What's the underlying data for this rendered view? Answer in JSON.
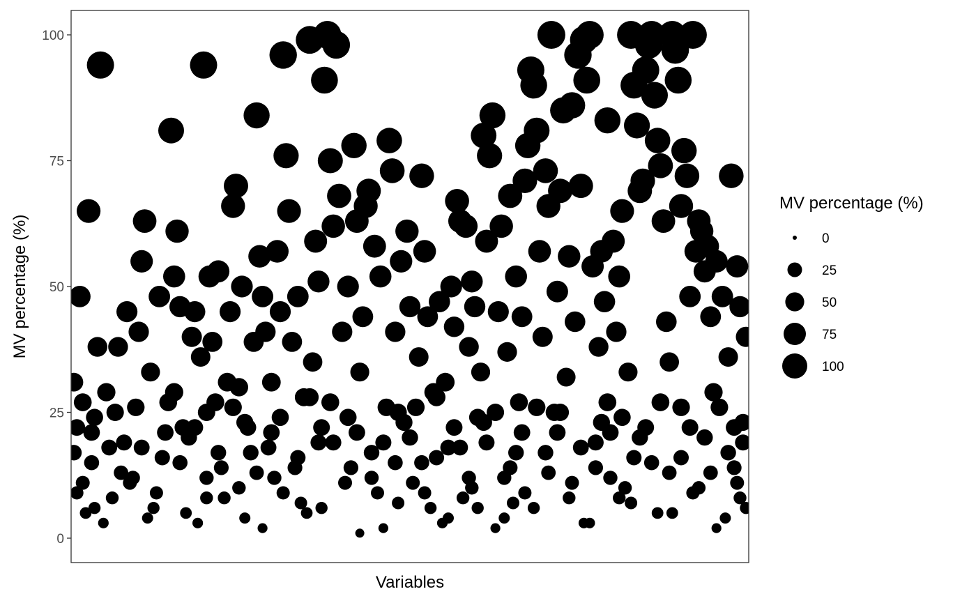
{
  "chart_data": {
    "type": "scatter",
    "xlabel": "Variables",
    "ylabel": "MV percentage (%)",
    "ylim": [
      0,
      100
    ],
    "yticks": [
      "0",
      "25",
      "50",
      "75",
      "100"
    ],
    "x_ticks_shown": false,
    "grid": false,
    "point_color": "#000000",
    "size_mapped_to": "y",
    "legend": {
      "title": "MV percentage (%)",
      "position": "right",
      "entries": [
        "0",
        "25",
        "50",
        "75",
        "100"
      ],
      "entry_values": [
        0,
        25,
        50,
        75,
        100
      ]
    },
    "series": [
      {
        "points": [
          [
            2,
            31
          ],
          [
            3,
            22
          ],
          [
            4,
            48
          ],
          [
            5,
            11
          ],
          [
            6,
            5
          ],
          [
            7,
            65
          ],
          [
            8,
            15
          ],
          [
            9,
            24
          ],
          [
            10,
            38
          ],
          [
            11,
            94
          ],
          [
            13,
            29
          ],
          [
            15,
            8
          ],
          [
            17,
            38
          ],
          [
            19,
            19
          ],
          [
            20,
            45
          ],
          [
            22,
            12
          ],
          [
            24,
            41
          ],
          [
            25,
            55
          ],
          [
            26,
            63
          ],
          [
            28,
            33
          ],
          [
            30,
            9
          ],
          [
            31,
            48
          ],
          [
            33,
            21
          ],
          [
            35,
            81
          ],
          [
            36,
            52
          ],
          [
            37,
            61
          ],
          [
            38,
            46
          ],
          [
            39,
            22
          ],
          [
            40,
            5
          ],
          [
            42,
            40
          ],
          [
            43,
            45
          ],
          [
            45,
            36
          ],
          [
            46,
            94
          ],
          [
            47,
            12
          ],
          [
            48,
            52
          ],
          [
            49,
            39
          ],
          [
            50,
            27
          ],
          [
            51,
            53
          ],
          [
            53,
            8
          ],
          [
            55,
            45
          ],
          [
            56,
            66
          ],
          [
            57,
            70
          ],
          [
            58,
            30
          ],
          [
            59,
            50
          ],
          [
            60,
            23
          ],
          [
            62,
            17
          ],
          [
            63,
            39
          ],
          [
            64,
            84
          ],
          [
            65,
            56
          ],
          [
            66,
            48
          ],
          [
            67,
            41
          ],
          [
            69,
            31
          ],
          [
            70,
            12
          ],
          [
            71,
            57
          ],
          [
            72,
            45
          ],
          [
            73,
            96
          ],
          [
            74,
            76
          ],
          [
            75,
            65
          ],
          [
            76,
            39
          ],
          [
            78,
            48
          ],
          [
            79,
            7
          ],
          [
            80,
            28
          ],
          [
            82,
            99
          ],
          [
            83,
            35
          ],
          [
            84,
            59
          ],
          [
            85,
            51
          ],
          [
            86,
            22
          ],
          [
            87,
            91
          ],
          [
            88,
            100
          ],
          [
            89,
            75
          ],
          [
            90,
            62
          ],
          [
            91,
            98
          ],
          [
            92,
            68
          ],
          [
            93,
            41
          ],
          [
            95,
            50
          ],
          [
            96,
            14
          ],
          [
            97,
            78
          ],
          [
            98,
            63
          ],
          [
            99,
            33
          ],
          [
            100,
            44
          ],
          [
            101,
            66
          ],
          [
            102,
            69
          ],
          [
            104,
            58
          ],
          [
            105,
            9
          ],
          [
            106,
            52
          ],
          [
            107,
            19
          ],
          [
            109,
            79
          ],
          [
            110,
            73
          ],
          [
            111,
            41
          ],
          [
            112,
            25
          ],
          [
            113,
            55
          ],
          [
            115,
            61
          ],
          [
            116,
            46
          ],
          [
            117,
            11
          ],
          [
            119,
            36
          ],
          [
            120,
            72
          ],
          [
            121,
            57
          ],
          [
            122,
            44
          ],
          [
            123,
            6
          ],
          [
            124,
            29
          ],
          [
            126,
            47
          ],
          [
            128,
            31
          ],
          [
            129,
            18
          ],
          [
            130,
            50
          ],
          [
            131,
            42
          ],
          [
            132,
            67
          ],
          [
            133,
            63
          ],
          [
            134,
            8
          ],
          [
            135,
            62
          ],
          [
            136,
            38
          ],
          [
            137,
            51
          ],
          [
            138,
            46
          ],
          [
            139,
            24
          ],
          [
            140,
            33
          ],
          [
            141,
            80
          ],
          [
            142,
            59
          ],
          [
            143,
            76
          ],
          [
            144,
            84
          ],
          [
            146,
            45
          ],
          [
            147,
            62
          ],
          [
            148,
            12
          ],
          [
            149,
            37
          ],
          [
            150,
            68
          ],
          [
            151,
            7
          ],
          [
            152,
            52
          ],
          [
            153,
            27
          ],
          [
            154,
            44
          ],
          [
            155,
            71
          ],
          [
            156,
            78
          ],
          [
            157,
            93
          ],
          [
            158,
            90
          ],
          [
            159,
            81
          ],
          [
            160,
            57
          ],
          [
            161,
            40
          ],
          [
            162,
            73
          ],
          [
            163,
            66
          ],
          [
            164,
            100
          ],
          [
            165,
            25
          ],
          [
            166,
            49
          ],
          [
            167,
            69
          ],
          [
            168,
            85
          ],
          [
            169,
            32
          ],
          [
            170,
            56
          ],
          [
            171,
            86
          ],
          [
            172,
            43
          ],
          [
            173,
            96
          ],
          [
            174,
            70
          ],
          [
            175,
            99
          ],
          [
            176,
            91
          ],
          [
            177,
            100
          ],
          [
            178,
            54
          ],
          [
            179,
            14
          ],
          [
            180,
            38
          ],
          [
            181,
            57
          ],
          [
            182,
            47
          ],
          [
            183,
            83
          ],
          [
            184,
            21
          ],
          [
            185,
            59
          ],
          [
            186,
            41
          ],
          [
            187,
            52
          ],
          [
            188,
            65
          ],
          [
            189,
            10
          ],
          [
            190,
            33
          ],
          [
            191,
            100
          ],
          [
            192,
            90
          ],
          [
            193,
            82
          ],
          [
            194,
            69
          ],
          [
            195,
            71
          ],
          [
            196,
            93
          ],
          [
            197,
            98
          ],
          [
            198,
            100
          ],
          [
            199,
            88
          ],
          [
            200,
            79
          ],
          [
            201,
            74
          ],
          [
            202,
            63
          ],
          [
            203,
            43
          ],
          [
            204,
            35
          ],
          [
            205,
            100
          ],
          [
            206,
            97
          ],
          [
            207,
            91
          ],
          [
            208,
            66
          ],
          [
            209,
            77
          ],
          [
            210,
            72
          ],
          [
            211,
            48
          ],
          [
            212,
            100
          ],
          [
            213,
            57
          ],
          [
            214,
            63
          ],
          [
            215,
            61
          ],
          [
            216,
            53
          ],
          [
            217,
            58
          ],
          [
            218,
            44
          ],
          [
            219,
            29
          ],
          [
            220,
            55
          ],
          [
            222,
            48
          ],
          [
            224,
            36
          ],
          [
            225,
            72
          ],
          [
            226,
            22
          ],
          [
            227,
            54
          ],
          [
            228,
            46
          ],
          [
            229,
            19
          ],
          [
            230,
            40
          ],
          [
            2,
            17
          ],
          [
            5,
            27
          ],
          [
            9,
            6
          ],
          [
            14,
            18
          ],
          [
            18,
            13
          ],
          [
            23,
            26
          ],
          [
            27,
            4
          ],
          [
            32,
            16
          ],
          [
            36,
            29
          ],
          [
            41,
            20
          ],
          [
            44,
            3
          ],
          [
            47,
            25
          ],
          [
            52,
            14
          ],
          [
            54,
            31
          ],
          [
            58,
            10
          ],
          [
            61,
            22
          ],
          [
            66,
            2
          ],
          [
            68,
            18
          ],
          [
            72,
            24
          ],
          [
            77,
            14
          ],
          [
            81,
            5
          ],
          [
            85,
            19
          ],
          [
            89,
            27
          ],
          [
            94,
            11
          ],
          [
            98,
            21
          ],
          [
            103,
            17
          ],
          [
            107,
            2
          ],
          [
            111,
            15
          ],
          [
            114,
            23
          ],
          [
            118,
            26
          ],
          [
            121,
            9
          ],
          [
            125,
            16
          ],
          [
            127,
            3
          ],
          [
            131,
            22
          ],
          [
            136,
            12
          ],
          [
            139,
            6
          ],
          [
            142,
            19
          ],
          [
            145,
            25
          ],
          [
            148,
            4
          ],
          [
            152,
            17
          ],
          [
            155,
            9
          ],
          [
            159,
            26
          ],
          [
            163,
            13
          ],
          [
            166,
            21
          ],
          [
            170,
            8
          ],
          [
            174,
            18
          ],
          [
            177,
            3
          ],
          [
            181,
            23
          ],
          [
            184,
            12
          ],
          [
            188,
            24
          ],
          [
            191,
            7
          ],
          [
            194,
            20
          ],
          [
            198,
            15
          ],
          [
            201,
            27
          ],
          [
            205,
            5
          ],
          [
            208,
            16
          ],
          [
            211,
            22
          ],
          [
            214,
            10
          ],
          [
            218,
            13
          ],
          [
            221,
            26
          ],
          [
            223,
            4
          ],
          [
            226,
            14
          ],
          [
            228,
            8
          ],
          [
            229,
            23
          ],
          [
            3,
            9
          ],
          [
            8,
            21
          ],
          [
            12,
            3
          ],
          [
            16,
            25
          ],
          [
            21,
            11
          ],
          [
            25,
            18
          ],
          [
            29,
            6
          ],
          [
            34,
            27
          ],
          [
            38,
            15
          ],
          [
            43,
            22
          ],
          [
            47,
            8
          ],
          [
            51,
            17
          ],
          [
            56,
            26
          ],
          [
            60,
            4
          ],
          [
            64,
            13
          ],
          [
            69,
            21
          ],
          [
            73,
            9
          ],
          [
            78,
            16
          ],
          [
            82,
            28
          ],
          [
            86,
            6
          ],
          [
            90,
            19
          ],
          [
            95,
            24
          ],
          [
            99,
            1
          ],
          [
            103,
            12
          ],
          [
            108,
            26
          ],
          [
            112,
            7
          ],
          [
            116,
            20
          ],
          [
            120,
            15
          ],
          [
            125,
            28
          ],
          [
            129,
            4
          ],
          [
            133,
            18
          ],
          [
            137,
            10
          ],
          [
            141,
            23
          ],
          [
            145,
            2
          ],
          [
            150,
            14
          ],
          [
            154,
            21
          ],
          [
            158,
            6
          ],
          [
            162,
            17
          ],
          [
            167,
            25
          ],
          [
            171,
            11
          ],
          [
            175,
            3
          ],
          [
            179,
            19
          ],
          [
            183,
            27
          ],
          [
            187,
            8
          ],
          [
            192,
            16
          ],
          [
            196,
            22
          ],
          [
            200,
            5
          ],
          [
            204,
            13
          ],
          [
            208,
            26
          ],
          [
            212,
            9
          ],
          [
            216,
            20
          ],
          [
            220,
            2
          ],
          [
            224,
            17
          ],
          [
            227,
            11
          ],
          [
            230,
            6
          ]
        ]
      }
    ]
  }
}
